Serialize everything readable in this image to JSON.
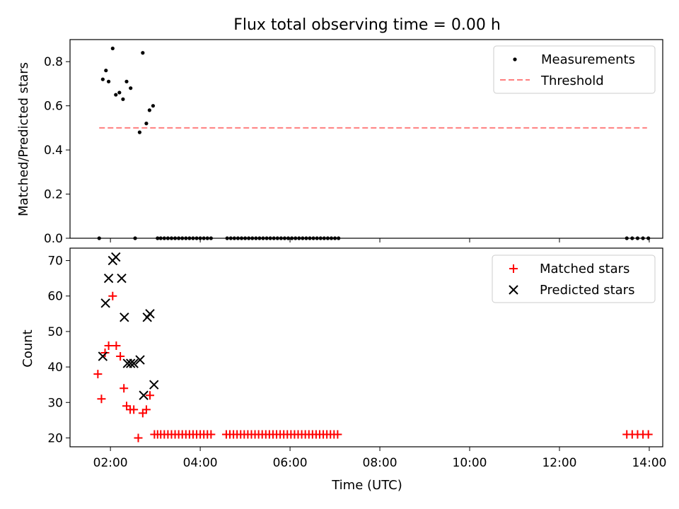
{
  "title": "Flux total observing time = 0.00 h",
  "colors": {
    "measurement": "#000000",
    "threshold": "#ff7f7f",
    "matched": "#ff0000",
    "predicted": "#000000"
  },
  "chart_data": [
    {
      "type": "scatter",
      "ylabel": "Matched/Predicted stars",
      "xlim": [
        1.1,
        14.3
      ],
      "ylim": [
        0,
        0.9
      ],
      "yticks": [
        0.0,
        0.2,
        0.4,
        0.6,
        0.8
      ],
      "ytick_labels": [
        "0.0",
        "0.2",
        "0.4",
        "0.6",
        "0.8"
      ],
      "legend": {
        "position": "top-right",
        "items": [
          "Measurements",
          "Threshold"
        ]
      },
      "threshold": {
        "name": "Threshold",
        "value": 0.5,
        "x_range": [
          1.75,
          13.95
        ]
      },
      "series": [
        {
          "name": "Measurements",
          "marker": "dot",
          "x": [
            1.75,
            1.83,
            1.9,
            1.96,
            2.05,
            2.12,
            2.2,
            2.28,
            2.36,
            2.45,
            2.55,
            2.65,
            2.72,
            2.8,
            2.87,
            2.95,
            3.05,
            3.12,
            3.2,
            3.28,
            3.36,
            3.44,
            3.52,
            3.6,
            3.68,
            3.76,
            3.84,
            3.92,
            4.0,
            4.08,
            4.16,
            4.24,
            4.6,
            4.68,
            4.76,
            4.84,
            4.92,
            5.0,
            5.08,
            5.16,
            5.24,
            5.32,
            5.4,
            5.48,
            5.56,
            5.64,
            5.72,
            5.8,
            5.88,
            5.96,
            6.04,
            6.12,
            6.2,
            6.28,
            6.36,
            6.44,
            6.52,
            6.6,
            6.68,
            6.76,
            6.84,
            6.92,
            7.0,
            7.08,
            13.5,
            13.62,
            13.74,
            13.86,
            13.98
          ],
          "y": [
            0,
            0.72,
            0.76,
            0.71,
            0.86,
            0.65,
            0.66,
            0.63,
            0.71,
            0.68,
            0,
            0.48,
            0.84,
            0.52,
            0.58,
            0.6,
            0,
            0,
            0,
            0,
            0,
            0,
            0,
            0,
            0,
            0,
            0,
            0,
            0,
            0,
            0,
            0,
            0,
            0,
            0,
            0,
            0,
            0,
            0,
            0,
            0,
            0,
            0,
            0,
            0,
            0,
            0,
            0,
            0,
            0,
            0,
            0,
            0,
            0,
            0,
            0,
            0,
            0,
            0,
            0,
            0,
            0,
            0,
            0,
            0,
            0,
            0,
            0,
            0
          ]
        }
      ]
    },
    {
      "type": "scatter",
      "xlabel": "Time (UTC)",
      "ylabel": "Count",
      "xlim": [
        1.1,
        14.3
      ],
      "ylim": [
        17.5,
        73.5
      ],
      "xticks": [
        2,
        4,
        6,
        8,
        10,
        12,
        14
      ],
      "xtick_labels": [
        "02:00",
        "04:00",
        "06:00",
        "08:00",
        "10:00",
        "12:00",
        "14:00"
      ],
      "yticks": [
        20,
        30,
        40,
        50,
        60,
        70
      ],
      "ytick_labels": [
        "20",
        "30",
        "40",
        "50",
        "60",
        "70"
      ],
      "legend": {
        "position": "top-right",
        "items": [
          "Matched stars",
          "Predicted stars"
        ]
      },
      "series": [
        {
          "name": "Matched stars",
          "marker": "plus",
          "x": [
            1.72,
            1.8,
            1.88,
            1.96,
            2.05,
            2.13,
            2.22,
            2.3,
            2.36,
            2.44,
            2.52,
            2.62,
            2.72,
            2.8,
            2.88,
            2.98,
            3.05,
            3.12,
            3.2,
            3.28,
            3.36,
            3.44,
            3.52,
            3.6,
            3.68,
            3.76,
            3.84,
            3.92,
            4.0,
            4.08,
            4.16,
            4.24,
            4.58,
            4.66,
            4.74,
            4.82,
            4.9,
            4.98,
            5.06,
            5.14,
            5.22,
            5.3,
            5.38,
            5.46,
            5.54,
            5.62,
            5.7,
            5.78,
            5.86,
            5.94,
            6.02,
            6.1,
            6.18,
            6.26,
            6.34,
            6.42,
            6.5,
            6.58,
            6.66,
            6.74,
            6.82,
            6.9,
            6.98,
            7.06,
            13.5,
            13.62,
            13.74,
            13.86,
            13.98
          ],
          "y": [
            38,
            31,
            44,
            46,
            60,
            46,
            43,
            34,
            29,
            28,
            28,
            20,
            27,
            28,
            32,
            21,
            21,
            21,
            21,
            21,
            21,
            21,
            21,
            21,
            21,
            21,
            21,
            21,
            21,
            21,
            21,
            21,
            21,
            21,
            21,
            21,
            21,
            21,
            21,
            21,
            21,
            21,
            21,
            21,
            21,
            21,
            21,
            21,
            21,
            21,
            21,
            21,
            21,
            21,
            21,
            21,
            21,
            21,
            21,
            21,
            21,
            21,
            21,
            21,
            21,
            21,
            21,
            21,
            21
          ]
        },
        {
          "name": "Predicted stars",
          "marker": "x",
          "x": [
            1.83,
            1.89,
            1.96,
            2.05,
            2.12,
            2.25,
            2.31,
            2.38,
            2.45,
            2.52,
            2.66,
            2.74,
            2.82,
            2.88,
            2.97
          ],
          "y": [
            43,
            58,
            65,
            70,
            71,
            65,
            54,
            41,
            41,
            41,
            42,
            32,
            54,
            55,
            35
          ]
        }
      ]
    }
  ]
}
